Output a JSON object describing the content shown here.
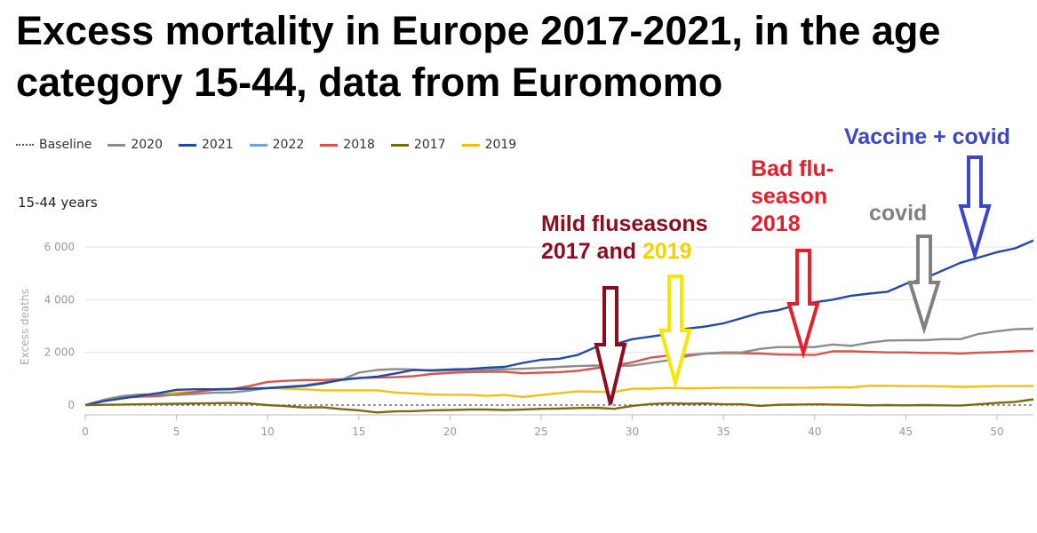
{
  "title": "Excess mortality in Europe 2017-2021, in the age category 15-44, data from Euromomo",
  "subtitle": "15-44 years",
  "legend": [
    {
      "label": "Baseline",
      "color": "#555555",
      "dashed": true
    },
    {
      "label": "2020",
      "color": "#8c8c8c"
    },
    {
      "label": "2021",
      "color": "#1f4aa8"
    },
    {
      "label": "2022",
      "color": "#6fa3e0"
    },
    {
      "label": "2018",
      "color": "#d9534f"
    },
    {
      "label": "2017",
      "color": "#7a6a10"
    },
    {
      "label": "2019",
      "color": "#f2c012"
    }
  ],
  "annotations": {
    "mild_line1": "Mild fluseasons",
    "mild_line2_a": "2017 and ",
    "mild_line2_b": "2019",
    "bad_flu_1": "Bad flu-",
    "bad_flu_2": "season",
    "bad_flu_3": "2018",
    "covid": "covid",
    "vaccine": "Vaccine + covid"
  },
  "annotation_colors": {
    "mild": "#8b0d1f",
    "y2019": "#f5e800",
    "bad_flu": "#e3202b",
    "covid": "#808080",
    "vaccine": "#3b46c8"
  },
  "chart_data": {
    "type": "line",
    "title": "Excess mortality in Europe 2017-2021, in the age category 15-44, data from Euromomo",
    "xlabel": "",
    "ylabel": "Excess deaths",
    "xlim": [
      0,
      52
    ],
    "ylim": [
      -500,
      6600
    ],
    "xticks": [
      0,
      5,
      10,
      15,
      20,
      25,
      30,
      35,
      40,
      45,
      50
    ],
    "xtick_labels": [
      "0",
      "5",
      "10",
      "15",
      "20",
      "25",
      "30",
      "35",
      "40",
      "45",
      "50"
    ],
    "yticks": [
      0,
      2000,
      4000,
      6000
    ],
    "ytick_labels": [
      "0",
      "2 000",
      "4 000",
      "6 000"
    ],
    "baseline": 0,
    "series": [
      {
        "name": "2019",
        "color": "#f2c012",
        "x": [
          0,
          1,
          2,
          3,
          4,
          5,
          6,
          7,
          8,
          9,
          10,
          11,
          12,
          13,
          14,
          15,
          16,
          17,
          18,
          19,
          20,
          21,
          22,
          23,
          24,
          25,
          26,
          27,
          28,
          29,
          30,
          31,
          32,
          33,
          34,
          35,
          36,
          37,
          38,
          39,
          40,
          41,
          42,
          43,
          44,
          45,
          46,
          47,
          48,
          49,
          50,
          51,
          52
        ],
        "values": [
          0,
          170,
          300,
          380,
          390,
          480,
          500,
          580,
          620,
          640,
          650,
          620,
          600,
          560,
          560,
          560,
          560,
          480,
          440,
          400,
          390,
          390,
          350,
          380,
          310,
          380,
          450,
          520,
          510,
          500,
          620,
          620,
          650,
          630,
          640,
          660,
          660,
          660,
          660,
          660,
          660,
          680,
          670,
          730,
          730,
          720,
          720,
          710,
          690,
          700,
          720,
          720,
          720
        ]
      },
      {
        "name": "2018",
        "color": "#d9534f",
        "x": [
          0,
          1,
          2,
          3,
          4,
          5,
          6,
          7,
          8,
          9,
          10,
          11,
          12,
          13,
          14,
          15,
          16,
          17,
          18,
          19,
          20,
          21,
          22,
          23,
          24,
          25,
          26,
          27,
          28,
          29,
          30,
          31,
          32,
          33,
          34,
          35,
          36,
          37,
          38,
          39,
          40,
          41,
          42,
          43,
          44,
          45,
          46,
          47,
          48,
          49,
          50,
          51,
          52
        ],
        "values": [
          0,
          180,
          280,
          320,
          340,
          400,
          500,
          580,
          600,
          720,
          880,
          920,
          950,
          950,
          980,
          1030,
          1050,
          1060,
          1100,
          1180,
          1220,
          1250,
          1260,
          1260,
          1210,
          1230,
          1250,
          1300,
          1400,
          1500,
          1620,
          1800,
          1880,
          1900,
          1950,
          1980,
          1970,
          1960,
          1920,
          1910,
          1900,
          2040,
          2040,
          2020,
          2000,
          2000,
          1980,
          1980,
          1960,
          1990,
          2010,
          2040,
          2060
        ]
      },
      {
        "name": "2020",
        "color": "#8c8c8c",
        "x": [
          0,
          1,
          2,
          3,
          4,
          5,
          6,
          7,
          8,
          9,
          10,
          11,
          12,
          13,
          14,
          15,
          16,
          17,
          18,
          19,
          20,
          21,
          22,
          23,
          24,
          25,
          26,
          27,
          28,
          29,
          30,
          31,
          32,
          33,
          34,
          35,
          36,
          37,
          38,
          39,
          40,
          41,
          42,
          43,
          44,
          45,
          46,
          47,
          48,
          49,
          50,
          51,
          52
        ],
        "values": [
          0,
          200,
          340,
          400,
          410,
          380,
          420,
          470,
          480,
          550,
          650,
          700,
          750,
          850,
          950,
          1230,
          1330,
          1370,
          1350,
          1300,
          1310,
          1330,
          1330,
          1360,
          1380,
          1410,
          1450,
          1480,
          1500,
          1480,
          1500,
          1600,
          1700,
          1850,
          1960,
          2000,
          2000,
          2130,
          2200,
          2200,
          2200,
          2300,
          2250,
          2370,
          2450,
          2460,
          2460,
          2500,
          2500,
          2700,
          2800,
          2880,
          2900
        ]
      },
      {
        "name": "2021",
        "color": "#1f4aa8",
        "x": [
          0,
          1,
          2,
          3,
          4,
          5,
          6,
          7,
          8,
          9,
          10,
          11,
          12,
          13,
          14,
          15,
          16,
          17,
          18,
          19,
          20,
          21,
          22,
          23,
          24,
          25,
          26,
          27,
          28,
          29,
          30,
          31,
          32,
          33,
          34,
          35,
          36,
          37,
          38,
          39,
          40,
          41,
          42,
          43,
          44,
          45,
          46,
          47,
          48,
          49,
          50,
          51,
          52
        ],
        "values": [
          0,
          150,
          250,
          350,
          450,
          580,
          600,
          600,
          610,
          620,
          640,
          680,
          720,
          820,
          950,
          1020,
          1080,
          1200,
          1330,
          1320,
          1350,
          1370,
          1420,
          1450,
          1600,
          1720,
          1760,
          1900,
          2200,
          2300,
          2500,
          2600,
          2700,
          2900,
          2980,
          3100,
          3300,
          3500,
          3600,
          3800,
          3900,
          4000,
          4150,
          4230,
          4300,
          4600,
          4800,
          5100,
          5400,
          5600,
          5800,
          5950,
          6250
        ]
      },
      {
        "name": "2017",
        "color": "#7a6a10",
        "x": [
          0,
          1,
          2,
          3,
          4,
          5,
          6,
          7,
          8,
          9,
          10,
          11,
          12,
          13,
          14,
          15,
          16,
          17,
          18,
          19,
          20,
          21,
          22,
          23,
          24,
          25,
          26,
          27,
          28,
          29,
          30,
          31,
          32,
          33,
          34,
          35,
          36,
          37,
          38,
          39,
          40,
          41,
          42,
          43,
          44,
          45,
          46,
          47,
          48,
          49,
          50,
          51,
          52
        ],
        "values": [
          0,
          10,
          20,
          30,
          40,
          50,
          60,
          70,
          80,
          60,
          0,
          -40,
          -90,
          -80,
          -150,
          -200,
          -280,
          -240,
          -230,
          -200,
          -190,
          -170,
          -170,
          -190,
          -170,
          -140,
          -130,
          -110,
          -100,
          -140,
          -30,
          40,
          70,
          50,
          60,
          30,
          30,
          -30,
          10,
          20,
          30,
          20,
          10,
          -10,
          0,
          -10,
          0,
          -10,
          -20,
          30,
          80,
          120,
          220
        ]
      }
    ]
  }
}
